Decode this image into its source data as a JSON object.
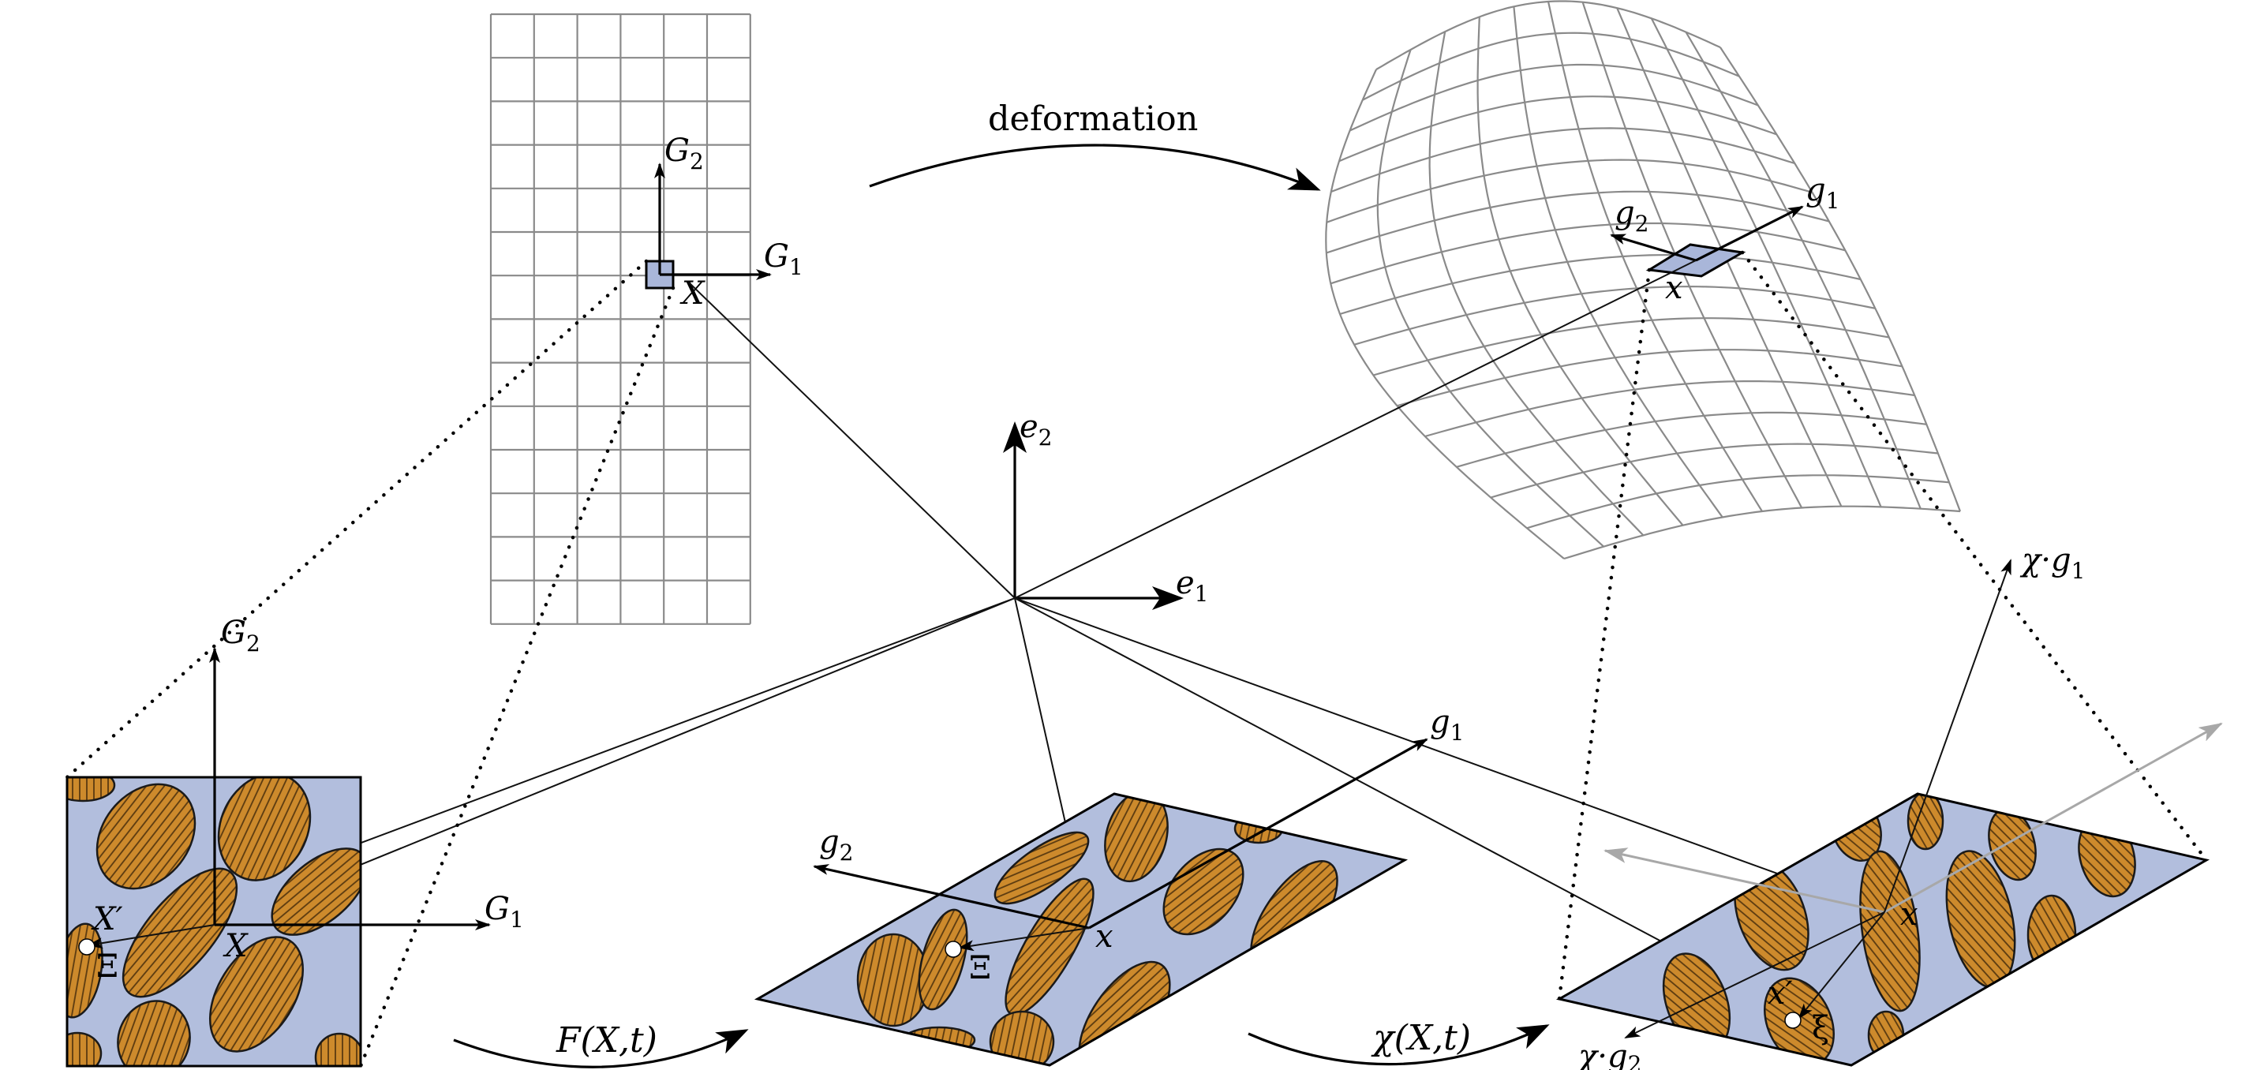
{
  "labels": {
    "deformation": "deformation",
    "G1_grid": "G",
    "G1_grid_sub": "1",
    "G2_grid": "G",
    "G2_grid_sub": "2",
    "X_grid": "X",
    "g1_def": "g",
    "g1_def_sub": "1",
    "g2_def": "g",
    "g2_def_sub": "2",
    "x_def": "x",
    "e1": "e",
    "e1_sub": "1",
    "e2": "e",
    "e2_sub": "2",
    "G1_micro": "G",
    "G1_micro_sub": "1",
    "G2_micro": "G",
    "G2_micro_sub": "2",
    "Xp_micro": "X′",
    "X_micro": "X",
    "Xi_micro": "Ξ",
    "F_map": "F(X,t)",
    "g1_mid": "g",
    "g1_mid_sub": "1",
    "g2_mid": "g",
    "g2_mid_sub": "2",
    "x_mid": "x",
    "Xi_mid": "Ξ",
    "chi_map": "χ(X,t)",
    "chi_g1": "χ·g",
    "chi_g1_sub": "1",
    "chi_g2": "χ·g",
    "chi_g2_sub": "2",
    "x_right": "x",
    "xp_right": "x′",
    "xi_right": "ξ"
  },
  "colors": {
    "matrix": "#b2bedd",
    "inclusion": "#cd8a2c",
    "hatch": "#5a3a10",
    "grid": "#8a8a8a",
    "element_fill": "#a9b6d9"
  }
}
